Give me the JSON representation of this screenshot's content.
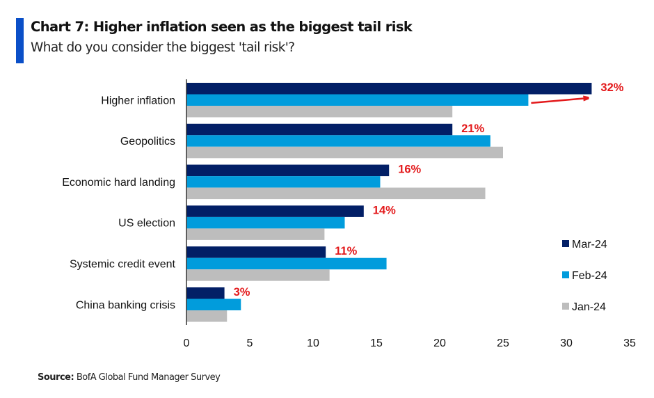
{
  "header": {
    "accent_color": "#0a4fc8",
    "title": "Chart 7: Higher inflation seen as the biggest tail risk",
    "subtitle": "What do you consider the biggest 'tail risk'?"
  },
  "footer": {
    "source_label": "Source:",
    "source_text": " BofA Global Fund Manager Survey"
  },
  "chart_data": {
    "type": "bar",
    "orientation": "horizontal",
    "title": "Chart 7: Higher inflation seen as the biggest tail risk",
    "subtitle": "What do you consider the biggest 'tail risk'?",
    "xlabel": "",
    "ylabel": "",
    "xlim": [
      0,
      35
    ],
    "xticks": [
      0,
      5,
      10,
      15,
      20,
      25,
      30,
      35
    ],
    "grid": false,
    "legend_position": "right",
    "categories": [
      "Higher inflation",
      "Geopolitics",
      "Economic hard landing",
      "US election",
      "Systemic credit event",
      "China banking crisis"
    ],
    "series": [
      {
        "name": "Mar-24",
        "color": "#021f66",
        "values": [
          32,
          21,
          16,
          14,
          11,
          3
        ]
      },
      {
        "name": "Feb-24",
        "color": "#019cdc",
        "values": [
          27,
          24,
          15.3,
          12.5,
          15.8,
          4.3
        ]
      },
      {
        "name": "Jan-24",
        "color": "#bdbdbd",
        "values": [
          21,
          25,
          23.6,
          10.9,
          11.3,
          3.2
        ]
      }
    ],
    "data_labels": [
      "32%",
      "21%",
      "16%",
      "14%",
      "11%",
      "3%"
    ],
    "data_label_color": "#e3191b",
    "annotations": [
      {
        "type": "arrow",
        "description": "red arrow from Feb-24 to Mar-24 on Higher inflation",
        "from_value": 27,
        "to_value": 32,
        "color": "#e3191b"
      }
    ]
  }
}
